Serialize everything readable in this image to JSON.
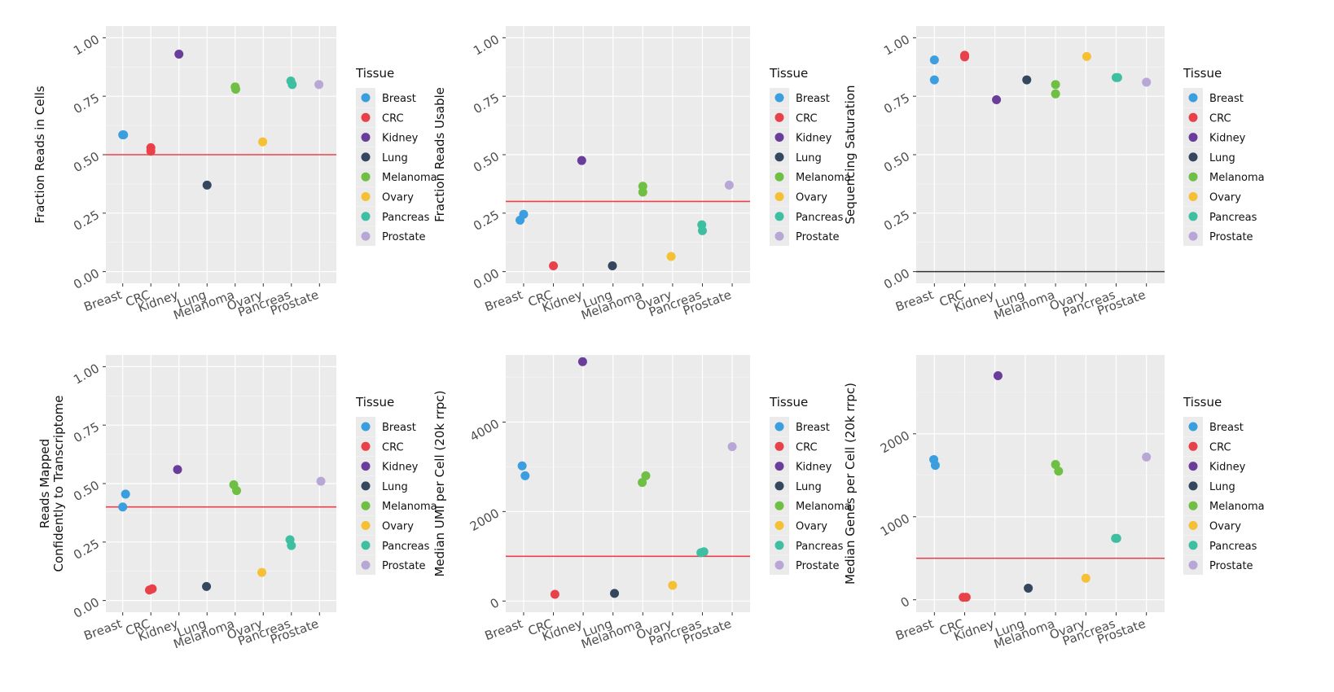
{
  "legend": {
    "title": "Tissue",
    "items": [
      {
        "name": "Breast",
        "color": "#3b9ede"
      },
      {
        "name": "CRC",
        "color": "#e8414a"
      },
      {
        "name": "Kidney",
        "color": "#6a3d9a"
      },
      {
        "name": "Lung",
        "color": "#34475f"
      },
      {
        "name": "Melanoma",
        "color": "#6fbf44"
      },
      {
        "name": "Ovary",
        "color": "#f5c034"
      },
      {
        "name": "Pancreas",
        "color": "#3ebfa2"
      },
      {
        "name": "Prostate",
        "color": "#b8a7d6"
      }
    ]
  },
  "chart_data": [
    {
      "type": "scatter",
      "title": "",
      "ylabel": "Fraction Reads in Cells",
      "categories": [
        "Breast",
        "CRC",
        "Kidney",
        "Lung",
        "Melanoma",
        "Ovary",
        "Pancreas",
        "Prostate"
      ],
      "ylim": [
        -0.05,
        1.05
      ],
      "yticks": [
        0,
        0.25,
        0.5,
        0.75,
        1
      ],
      "ytick_labels": [
        "0.00",
        "0.25",
        "0.50",
        "0.75",
        "1.00"
      ],
      "hline": {
        "y": 0.5,
        "color": "#e8414a"
      },
      "points": [
        {
          "tissue": "Breast",
          "x": 1.0,
          "y": 0.585
        },
        {
          "tissue": "Breast",
          "x": 1.03,
          "y": 0.585
        },
        {
          "tissue": "CRC",
          "x": 2.0,
          "y": 0.53
        },
        {
          "tissue": "CRC",
          "x": 2.0,
          "y": 0.515
        },
        {
          "tissue": "Kidney",
          "x": 3.0,
          "y": 0.93
        },
        {
          "tissue": "Lung",
          "x": 4.0,
          "y": 0.37
        },
        {
          "tissue": "Melanoma",
          "x": 5.0,
          "y": 0.79
        },
        {
          "tissue": "Melanoma",
          "x": 5.02,
          "y": 0.78
        },
        {
          "tissue": "Ovary",
          "x": 5.98,
          "y": 0.555
        },
        {
          "tissue": "Pancreas",
          "x": 6.98,
          "y": 0.815
        },
        {
          "tissue": "Pancreas",
          "x": 7.03,
          "y": 0.8
        },
        {
          "tissue": "Prostate",
          "x": 7.98,
          "y": 0.8
        }
      ]
    },
    {
      "type": "scatter",
      "title": "",
      "ylabel": "Fraction Reads Usable",
      "categories": [
        "Breast",
        "CRC",
        "Kidney",
        "Lung",
        "Melanoma",
        "Ovary",
        "Pancreas",
        "Prostate"
      ],
      "ylim": [
        -0.05,
        1.05
      ],
      "yticks": [
        0,
        0.25,
        0.5,
        0.75,
        1
      ],
      "ytick_labels": [
        "0.00",
        "0.25",
        "0.50",
        "0.75",
        "1.00"
      ],
      "hline": {
        "y": 0.3,
        "color": "#e8414a"
      },
      "points": [
        {
          "tissue": "Breast",
          "x": 0.88,
          "y": 0.22
        },
        {
          "tissue": "Breast",
          "x": 1.0,
          "y": 0.245
        },
        {
          "tissue": "CRC",
          "x": 2.0,
          "y": 0.025
        },
        {
          "tissue": "Kidney",
          "x": 2.95,
          "y": 0.475
        },
        {
          "tissue": "Lung",
          "x": 3.98,
          "y": 0.025
        },
        {
          "tissue": "Melanoma",
          "x": 5.0,
          "y": 0.365
        },
        {
          "tissue": "Melanoma",
          "x": 5.0,
          "y": 0.34
        },
        {
          "tissue": "Ovary",
          "x": 5.95,
          "y": 0.065
        },
        {
          "tissue": "Pancreas",
          "x": 6.98,
          "y": 0.2
        },
        {
          "tissue": "Pancreas",
          "x": 7.0,
          "y": 0.175
        },
        {
          "tissue": "Prostate",
          "x": 7.9,
          "y": 0.37
        }
      ]
    },
    {
      "type": "scatter",
      "title": "",
      "ylabel": "Sequencing Saturation",
      "categories": [
        "Breast",
        "CRC",
        "Kidney",
        "Lung",
        "Melanoma",
        "Ovary",
        "Pancreas",
        "Prostate"
      ],
      "ylim": [
        -0.05,
        1.05
      ],
      "yticks": [
        0,
        0.25,
        0.5,
        0.75,
        1
      ],
      "ytick_labels": [
        "0.00",
        "0.25",
        "0.50",
        "0.75",
        "1.00"
      ],
      "hline": {
        "y": 0.0,
        "color": "#333333"
      },
      "points": [
        {
          "tissue": "Breast",
          "x": 1.0,
          "y": 0.905
        },
        {
          "tissue": "Breast",
          "x": 1.0,
          "y": 0.82
        },
        {
          "tissue": "CRC",
          "x": 2.0,
          "y": 0.925
        },
        {
          "tissue": "CRC",
          "x": 2.0,
          "y": 0.918
        },
        {
          "tissue": "Kidney",
          "x": 3.05,
          "y": 0.735
        },
        {
          "tissue": "Lung",
          "x": 4.05,
          "y": 0.82
        },
        {
          "tissue": "Melanoma",
          "x": 5.0,
          "y": 0.8
        },
        {
          "tissue": "Melanoma",
          "x": 5.0,
          "y": 0.76
        },
        {
          "tissue": "Ovary",
          "x": 6.03,
          "y": 0.92
        },
        {
          "tissue": "Pancreas",
          "x": 7.0,
          "y": 0.83
        },
        {
          "tissue": "Pancreas",
          "x": 7.05,
          "y": 0.83
        },
        {
          "tissue": "Prostate",
          "x": 8.0,
          "y": 0.81
        }
      ]
    },
    {
      "type": "scatter",
      "title": "",
      "ylabel_lines": [
        "Reads Mapped",
        "Confidently to Transcriptome"
      ],
      "categories": [
        "Breast",
        "CRC",
        "Kidney",
        "Lung",
        "Melanoma",
        "Ovary",
        "Pancreas",
        "Prostate"
      ],
      "ylim": [
        -0.05,
        1.05
      ],
      "yticks": [
        0,
        0.25,
        0.5,
        0.75,
        1
      ],
      "ytick_labels": [
        "0.00",
        "0.25",
        "0.50",
        "0.75",
        "1.00"
      ],
      "hline": {
        "y": 0.4,
        "color": "#e8414a"
      },
      "points": [
        {
          "tissue": "Breast",
          "x": 1.0,
          "y": 0.4
        },
        {
          "tissue": "Breast",
          "x": 1.1,
          "y": 0.455
        },
        {
          "tissue": "CRC",
          "x": 1.95,
          "y": 0.045
        },
        {
          "tissue": "CRC",
          "x": 2.05,
          "y": 0.05
        },
        {
          "tissue": "Kidney",
          "x": 2.95,
          "y": 0.56
        },
        {
          "tissue": "Lung",
          "x": 3.98,
          "y": 0.06
        },
        {
          "tissue": "Melanoma",
          "x": 4.95,
          "y": 0.495
        },
        {
          "tissue": "Melanoma",
          "x": 5.05,
          "y": 0.47
        },
        {
          "tissue": "Ovary",
          "x": 5.95,
          "y": 0.12
        },
        {
          "tissue": "Pancreas",
          "x": 6.95,
          "y": 0.26
        },
        {
          "tissue": "Pancreas",
          "x": 7.0,
          "y": 0.235
        },
        {
          "tissue": "Prostate",
          "x": 8.05,
          "y": 0.51
        }
      ]
    },
    {
      "type": "scatter",
      "title": "",
      "ylabel": "Median UMI per Cell (20k rrpc)",
      "categories": [
        "Breast",
        "CRC",
        "Kidney",
        "Lung",
        "Melanoma",
        "Ovary",
        "Pancreas",
        "Prostate"
      ],
      "ylim": [
        -250,
        5500
      ],
      "yticks": [
        0,
        2000,
        4000
      ],
      "ytick_labels": [
        "0",
        "2000",
        "4000"
      ],
      "hline": {
        "y": 1000,
        "color": "#e8414a"
      },
      "points": [
        {
          "tissue": "Breast",
          "x": 0.95,
          "y": 3020
        },
        {
          "tissue": "Breast",
          "x": 1.05,
          "y": 2800
        },
        {
          "tissue": "CRC",
          "x": 2.05,
          "y": 150
        },
        {
          "tissue": "Kidney",
          "x": 2.98,
          "y": 5350
        },
        {
          "tissue": "Lung",
          "x": 4.05,
          "y": 170
        },
        {
          "tissue": "Melanoma",
          "x": 4.98,
          "y": 2650
        },
        {
          "tissue": "Melanoma",
          "x": 5.1,
          "y": 2800
        },
        {
          "tissue": "Ovary",
          "x": 6.0,
          "y": 350
        },
        {
          "tissue": "Pancreas",
          "x": 6.95,
          "y": 1080
        },
        {
          "tissue": "Pancreas",
          "x": 7.05,
          "y": 1100
        },
        {
          "tissue": "Prostate",
          "x": 8.0,
          "y": 3450
        }
      ]
    },
    {
      "type": "scatter",
      "title": "",
      "ylabel": "Median Genes per Cell (20k rrpc)",
      "categories": [
        "Breast",
        "CRC",
        "Kidney",
        "Lung",
        "Melanoma",
        "Ovary",
        "Pancreas",
        "Prostate"
      ],
      "ylim": [
        -150,
        2950
      ],
      "yticks": [
        0,
        1000,
        2000
      ],
      "ytick_labels": [
        "0",
        "1000",
        "2000"
      ],
      "hline": {
        "y": 500,
        "color": "#e8414a"
      },
      "points": [
        {
          "tissue": "Breast",
          "x": 0.98,
          "y": 1690
        },
        {
          "tissue": "Breast",
          "x": 1.03,
          "y": 1620
        },
        {
          "tissue": "CRC",
          "x": 1.95,
          "y": 30
        },
        {
          "tissue": "CRC",
          "x": 2.05,
          "y": 30
        },
        {
          "tissue": "Kidney",
          "x": 3.1,
          "y": 2700
        },
        {
          "tissue": "Lung",
          "x": 4.1,
          "y": 140
        },
        {
          "tissue": "Melanoma",
          "x": 5.0,
          "y": 1630
        },
        {
          "tissue": "Melanoma",
          "x": 5.1,
          "y": 1550
        },
        {
          "tissue": "Ovary",
          "x": 6.0,
          "y": 260
        },
        {
          "tissue": "Pancreas",
          "x": 6.98,
          "y": 740
        },
        {
          "tissue": "Pancreas",
          "x": 7.02,
          "y": 740
        },
        {
          "tissue": "Prostate",
          "x": 8.0,
          "y": 1720
        }
      ]
    }
  ]
}
